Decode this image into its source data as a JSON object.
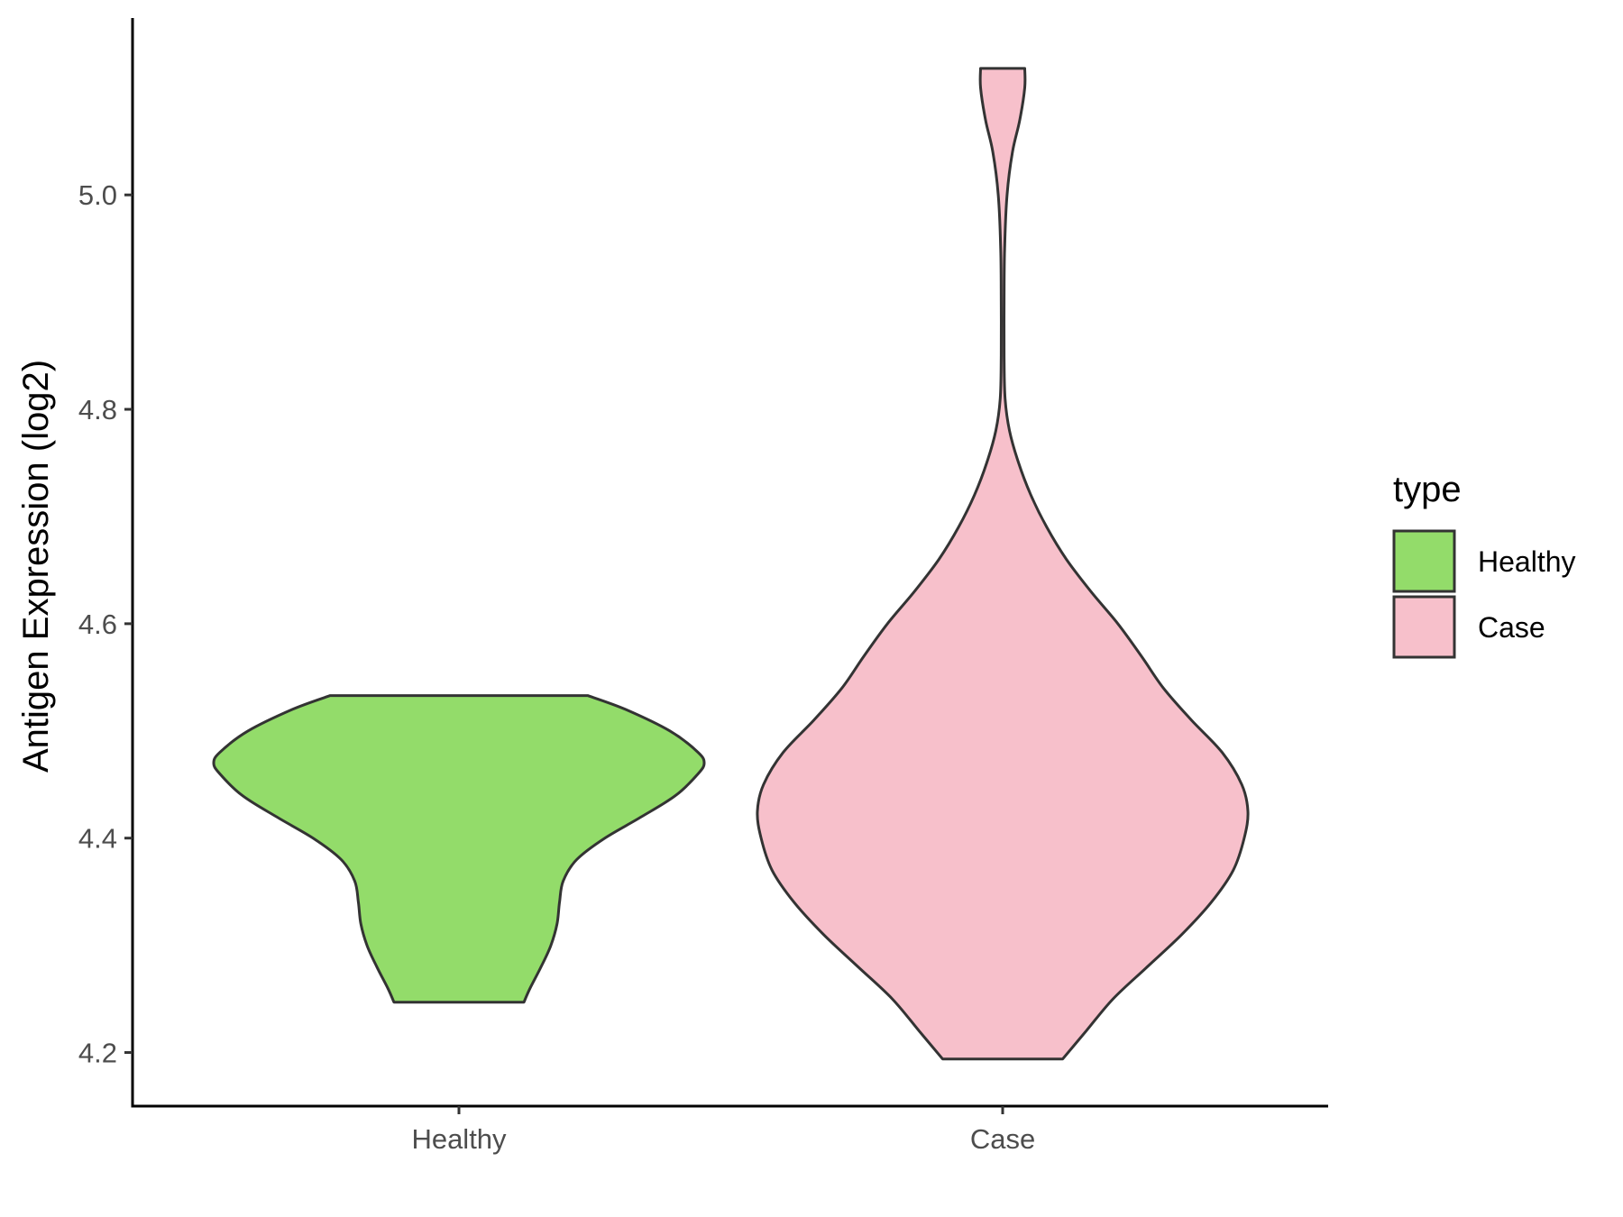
{
  "chart_data": {
    "type": "violin",
    "ylabel": "Antigen Expression (log2)",
    "xlabel": "",
    "categories": [
      "Healthy",
      "Case"
    ],
    "ylim": [
      4.15,
      5.165
    ],
    "yticks": [
      4.2,
      4.4,
      4.6,
      4.8,
      5.0
    ],
    "ytick_labels": [
      "4.2",
      "4.4",
      "4.6",
      "4.8",
      "5.0"
    ],
    "grid": false,
    "legend": {
      "title": "type",
      "position": "right",
      "entries": [
        {
          "label": "Healthy",
          "color": "#93dc6a"
        },
        {
          "label": "Case",
          "color": "#f7c0cb"
        }
      ]
    },
    "series": [
      {
        "name": "Healthy",
        "color": "#93dc6a",
        "min": 4.247,
        "max": 4.533,
        "profile": [
          [
            4.247,
            0.265
          ],
          [
            4.26,
            0.29
          ],
          [
            4.28,
            0.335
          ],
          [
            4.3,
            0.375
          ],
          [
            4.32,
            0.4
          ],
          [
            4.34,
            0.41
          ],
          [
            4.36,
            0.425
          ],
          [
            4.38,
            0.48
          ],
          [
            4.4,
            0.595
          ],
          [
            4.42,
            0.745
          ],
          [
            4.44,
            0.885
          ],
          [
            4.46,
            0.975
          ],
          [
            4.47,
            1.0
          ],
          [
            4.48,
            0.975
          ],
          [
            4.5,
            0.86
          ],
          [
            4.52,
            0.68
          ],
          [
            4.533,
            0.525
          ]
        ]
      },
      {
        "name": "Case",
        "color": "#f7c0cb",
        "min": 4.194,
        "max": 5.118,
        "profile": [
          [
            4.194,
            0.245
          ],
          [
            4.22,
            0.34
          ],
          [
            4.25,
            0.45
          ],
          [
            4.28,
            0.59
          ],
          [
            4.31,
            0.73
          ],
          [
            4.34,
            0.85
          ],
          [
            4.37,
            0.94
          ],
          [
            4.4,
            0.985
          ],
          [
            4.425,
            1.0
          ],
          [
            4.45,
            0.975
          ],
          [
            4.48,
            0.895
          ],
          [
            4.51,
            0.77
          ],
          [
            4.54,
            0.655
          ],
          [
            4.57,
            0.565
          ],
          [
            4.6,
            0.47
          ],
          [
            4.63,
            0.36
          ],
          [
            4.66,
            0.26
          ],
          [
            4.69,
            0.18
          ],
          [
            4.72,
            0.115
          ],
          [
            4.75,
            0.065
          ],
          [
            4.78,
            0.028
          ],
          [
            4.81,
            0.01
          ],
          [
            4.85,
            0.006
          ],
          [
            4.9,
            0.006
          ],
          [
            4.95,
            0.008
          ],
          [
            5.0,
            0.018
          ],
          [
            5.04,
            0.04
          ],
          [
            5.07,
            0.07
          ],
          [
            5.1,
            0.09
          ],
          [
            5.118,
            0.09
          ]
        ]
      }
    ]
  }
}
